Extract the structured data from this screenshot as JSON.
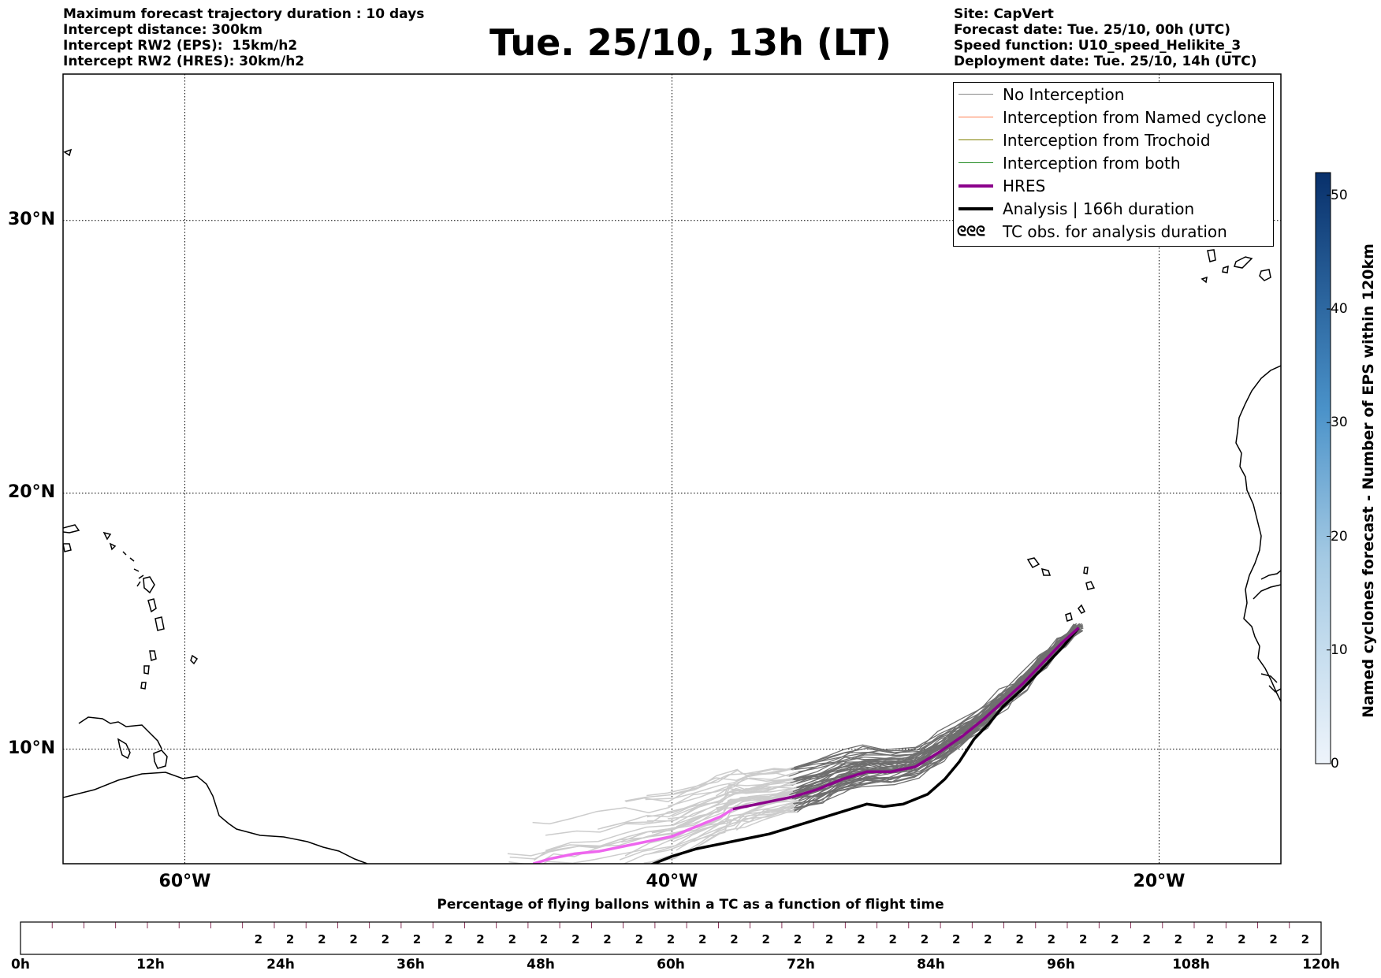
{
  "info_left": [
    "Maximum forecast trajectory duration : 10 days",
    "Intercept distance: 300km",
    "Intercept RW2 (EPS):  15km/h2",
    "Intercept RW2 (HRES): 30km/h2"
  ],
  "info_right": [
    "Site: CapVert",
    "Forecast date: Tue. 25/10, 00h (UTC)",
    "Speed function: U10_speed_Helikite_3",
    "Deployment date: Tue. 25/10, 14h (UTC)"
  ],
  "title": "Tue. 25/10, 13h (LT)",
  "map": {
    "lon_range": [
      -65,
      -15
    ],
    "lat_range": [
      5.4,
      35
    ],
    "lat_ticks": [
      {
        "value": 30,
        "label": "30°N"
      },
      {
        "value": 20,
        "label": "20°N"
      },
      {
        "value": 10,
        "label": "10°N"
      }
    ],
    "lon_ticks": [
      {
        "value": -60,
        "label": "60°W"
      },
      {
        "value": -40,
        "label": "40°W"
      },
      {
        "value": -20,
        "label": "20°W"
      }
    ],
    "grid": true
  },
  "legend": {
    "items": [
      {
        "label": "No Interception",
        "color": "#888888",
        "style": "thin"
      },
      {
        "label": "Interception from Named cyclone",
        "color": "#ff7f50",
        "style": "thin"
      },
      {
        "label": "Interception from Trochoid",
        "color": "#808000",
        "style": "thin"
      },
      {
        "label": "Interception from both",
        "color": "#228b22",
        "style": "thin"
      },
      {
        "label": "HRES",
        "color": "#8b008b",
        "style": "thick"
      },
      {
        "label": "Analysis | 166h duration",
        "color": "#000000",
        "style": "thick"
      },
      {
        "label": "TC obs. for analysis duration",
        "symbol": "ᘓᘓᘓ",
        "style": "symbol"
      }
    ]
  },
  "colorbar": {
    "label": "Named cyclones forecast - Number of EPS within 120km",
    "ticks": [
      "0",
      "10",
      "20",
      "30",
      "40",
      "50"
    ],
    "max": 52,
    "color_low": "#e6f0fa",
    "color_high": "#08306b"
  },
  "chart_data": {
    "type": "line",
    "xlabel": "",
    "ylabel": "",
    "series": [
      {
        "name": "HRES",
        "color": "#8b008b",
        "color_late": "#ee66ee",
        "lon": [
          -23.3,
          -24.0,
          -24.8,
          -25.6,
          -26.4,
          -27.2,
          -28.1,
          -29.0,
          -30.0,
          -31.0,
          -32.0,
          -33.0,
          -34.0,
          -35.0,
          -36.0,
          -37.0,
          -37.5,
          -38.0,
          -39.0,
          -40.0,
          -41.0,
          -42.0,
          -43.0,
          -44.0,
          -45.0,
          -45.7
        ],
        "lat": [
          14.8,
          14.2,
          13.4,
          12.6,
          11.9,
          11.2,
          10.5,
          9.9,
          9.3,
          9.1,
          9.1,
          8.8,
          8.4,
          8.1,
          7.9,
          7.7,
          7.6,
          7.3,
          6.9,
          6.5,
          6.3,
          6.1,
          5.9,
          5.8,
          5.6,
          5.4
        ]
      },
      {
        "name": "Analysis | 166h duration",
        "color": "#000000",
        "lon": [
          -23.3,
          -24.0,
          -24.8,
          -25.6,
          -26.4,
          -27.0,
          -27.6,
          -28.2,
          -28.8,
          -29.5,
          -30.5,
          -31.3,
          -32.0,
          -33.0,
          -34.0,
          -35.0,
          -36.0,
          -37.0,
          -38.0,
          -39.0,
          -40.0,
          -41.0,
          -42.0
        ],
        "lat": [
          14.8,
          14.0,
          13.2,
          12.4,
          11.7,
          11.0,
          10.4,
          9.5,
          8.8,
          8.2,
          7.8,
          7.7,
          7.8,
          7.5,
          7.2,
          6.9,
          6.6,
          6.4,
          6.2,
          6.0,
          5.7,
          5.3,
          4.9
        ]
      }
    ]
  },
  "bottom_bar": {
    "title": "Percentage of flying ballons within a TC as a function of flight time",
    "cells": [
      "",
      "",
      "",
      "",
      "",
      "",
      "",
      "2",
      "2",
      "2",
      "2",
      "2",
      "2",
      "2",
      "2",
      "2",
      "2",
      "2",
      "2",
      "2",
      "2",
      "2",
      "2",
      "2",
      "2",
      "2",
      "2",
      "2",
      "2",
      "2",
      "2",
      "2",
      "2",
      "2",
      "2",
      "2",
      "2",
      "2",
      "2",
      "2",
      "2"
    ],
    "color_zero": "#9e0142",
    "color_value": "#a8124a",
    "time_labels": [
      "0h",
      "12h",
      "24h",
      "36h",
      "48h",
      "60h",
      "72h",
      "84h",
      "96h",
      "108h",
      "120h"
    ]
  }
}
